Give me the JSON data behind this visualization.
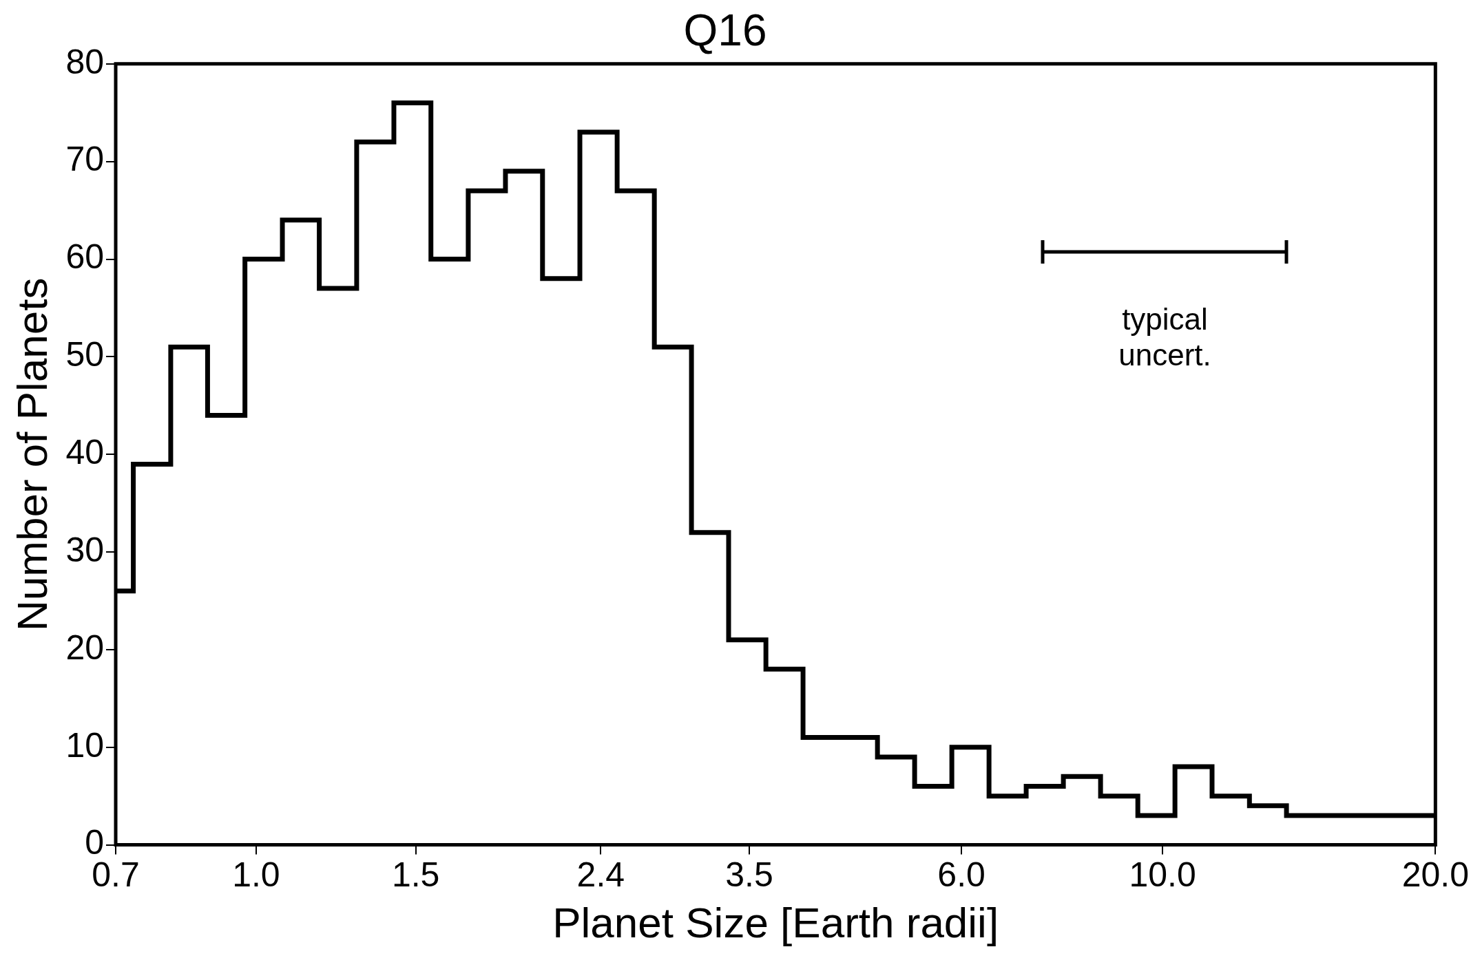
{
  "chart_data": {
    "type": "histogram",
    "title": "Q16",
    "xlabel": "Planet Size [Earth radii]",
    "ylabel": "Number of Planets",
    "bins": [
      0.7,
      0.732,
      0.805,
      0.884,
      0.972,
      1.069,
      1.174,
      1.291,
      1.419,
      1.559,
      1.714,
      1.884,
      2.07,
      2.276,
      2.502,
      2.75,
      3.022,
      3.321,
      3.651,
      4.012,
      4.41,
      4.847,
      5.327,
      5.855,
      6.435,
      7.072,
      7.773,
      8.543,
      9.391,
      10.32,
      11.34,
      12.47,
      13.7,
      15.06,
      16.55,
      18.2,
      20.0
    ],
    "values": [
      26,
      39,
      51,
      44,
      60,
      64,
      57,
      72,
      76,
      60,
      67,
      69,
      58,
      73,
      67,
      51,
      32,
      21,
      18,
      11,
      11,
      9,
      6,
      10,
      5,
      6,
      7,
      5,
      3,
      8,
      5,
      4,
      3,
      3,
      3,
      3
    ],
    "color": "#000000",
    "log": "x",
    "xlim": [
      0.7,
      20.0
    ],
    "xticks": [
      {
        "value": 0.7,
        "label": "0.7"
      },
      {
        "value": 1.0,
        "label": "1.0"
      },
      {
        "value": 1.5,
        "label": "1.5"
      },
      {
        "value": 2.4,
        "label": "2.4"
      },
      {
        "value": 3.5,
        "label": "3.5"
      },
      {
        "value": 6.0,
        "label": "6.0"
      },
      {
        "value": 10.0,
        "label": "10.0"
      },
      {
        "value": 20.0,
        "label": "20.0"
      }
    ],
    "ylim": [
      0,
      80
    ],
    "yticks": [
      0,
      10,
      20,
      30,
      40,
      50,
      60,
      70,
      80
    ],
    "annotations": [
      "typical\nuncert."
    ]
  }
}
